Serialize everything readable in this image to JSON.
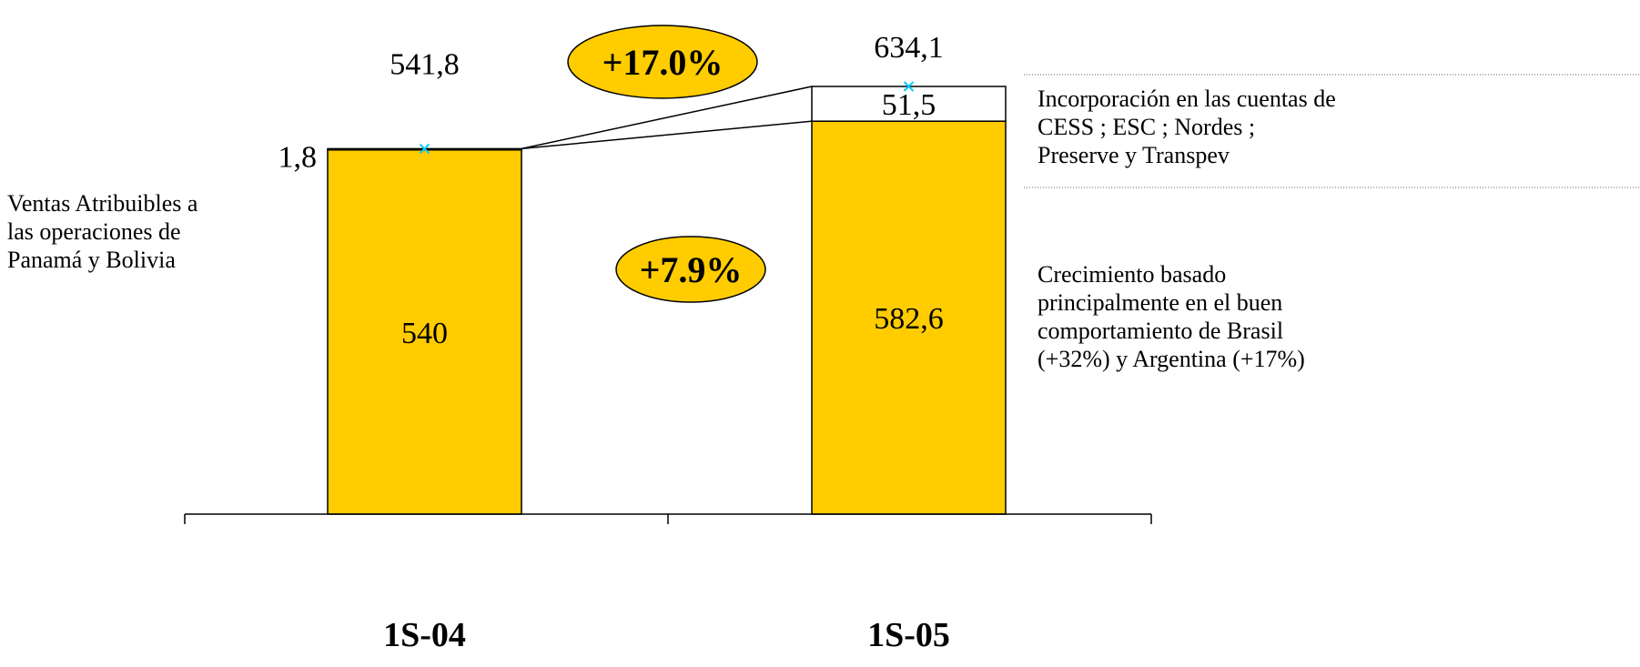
{
  "chart_data": {
    "type": "bar",
    "stacked": true,
    "categories": [
      "1S-04",
      "1S-05"
    ],
    "series": [
      {
        "values": [
          540,
          582.6
        ],
        "labels": [
          "540",
          "582,6"
        ],
        "color": "#FFCC00"
      },
      {
        "values": [
          1.8,
          51.5
        ],
        "labels": [
          "1,8",
          "51,5"
        ],
        "color": "#FFFFFF"
      }
    ],
    "totals": {
      "values": [
        541.8,
        634.1
      ],
      "labels": [
        "541,8",
        "634,1"
      ]
    },
    "growth_badges": [
      {
        "label": "+17.0%",
        "color": "#FFCC00"
      },
      {
        "label": "+7.9%",
        "color": "#FFCC00"
      }
    ],
    "annotations": {
      "left": [
        "Ventas Atribuibles a",
        "las operaciones de",
        "Panamá y Bolivia"
      ],
      "right_top": [
        "Incorporación en las cuentas de",
        "CESS ; ESC ; Nordes ;",
        "Preserve y Transpev"
      ],
      "right_bottom": [
        "Crecimiento basado",
        "principalmente en el buen",
        "comportamiento de Brasil",
        "(+32%) y Argentina (+17%)"
      ]
    },
    "grid": false,
    "legend": "none"
  }
}
